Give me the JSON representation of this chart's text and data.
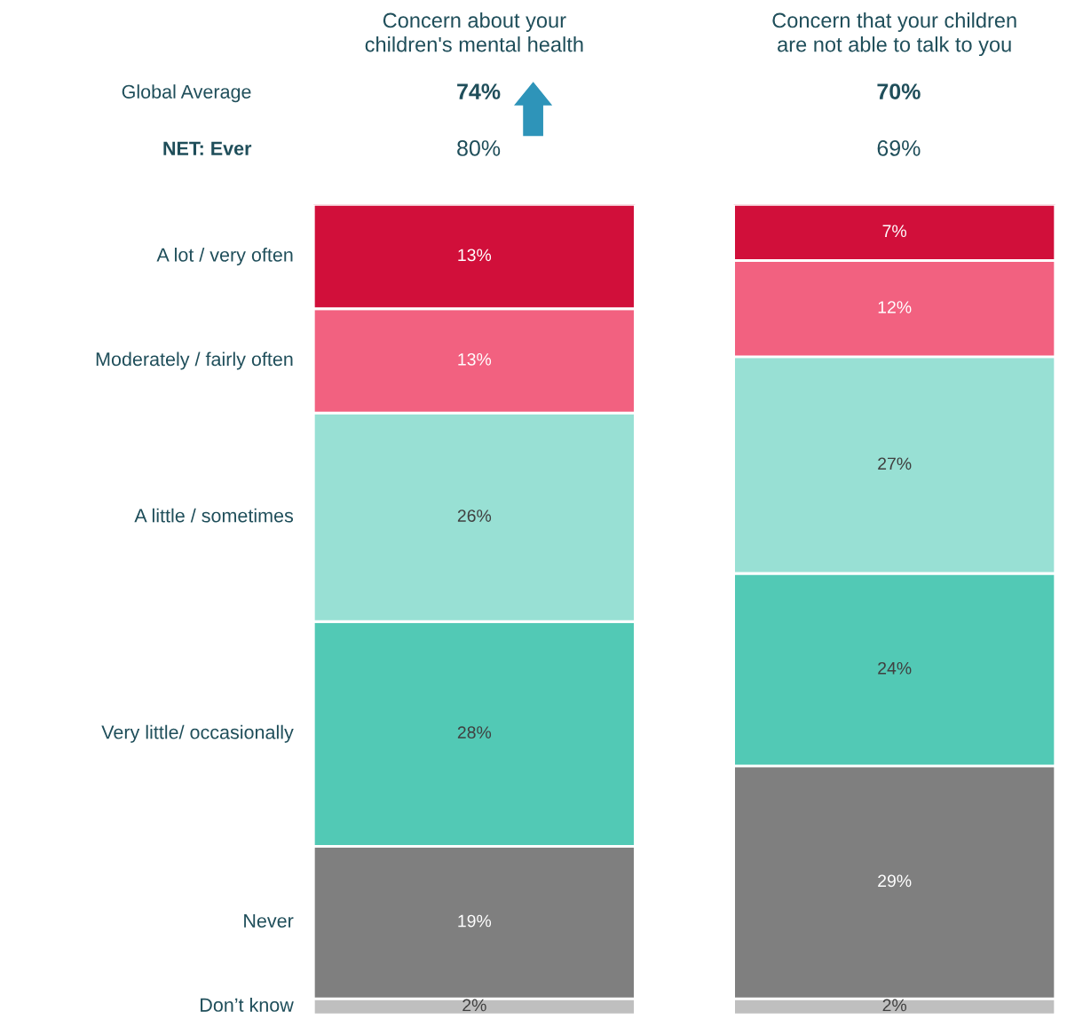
{
  "chart_data": {
    "type": "bar",
    "stacked": true,
    "legend": false,
    "tick_labels": false,
    "categories": [
      "Concern about your children's mental health",
      "Concern that your children are not able to talk to you"
    ],
    "annotations": [
      "Global Average",
      "74%",
      "70%",
      "NET: Ever",
      "80%",
      "69%"
    ],
    "series": [
      {
        "name": "Don’t know",
        "color": "#bfbfbf",
        "values": [
          2,
          2
        ],
        "value_labels": [
          "2%",
          "2%"
        ]
      },
      {
        "name": "Never",
        "color": "#7f7f7f",
        "values": [
          19,
          29
        ],
        "value_labels": [
          "19%",
          "29%"
        ]
      },
      {
        "name": "Very little/ occasionally",
        "color": "#52c9b5",
        "values": [
          28,
          24
        ],
        "value_labels": [
          "28%",
          "24%"
        ]
      },
      {
        "name": "A little / sometimes",
        "color": "#98e0d4",
        "values": [
          26,
          27
        ],
        "value_labels": [
          "26%",
          "27%"
        ]
      },
      {
        "name": "Moderately / fairly often",
        "color": "#f26180",
        "values": [
          13,
          12
        ],
        "value_labels": [
          "13%",
          "12%"
        ]
      },
      {
        "name": "A lot / very often",
        "color": "#d10f3a",
        "values": [
          13,
          7
        ],
        "value_labels": [
          "13%",
          "7%"
        ]
      }
    ]
  }
}
